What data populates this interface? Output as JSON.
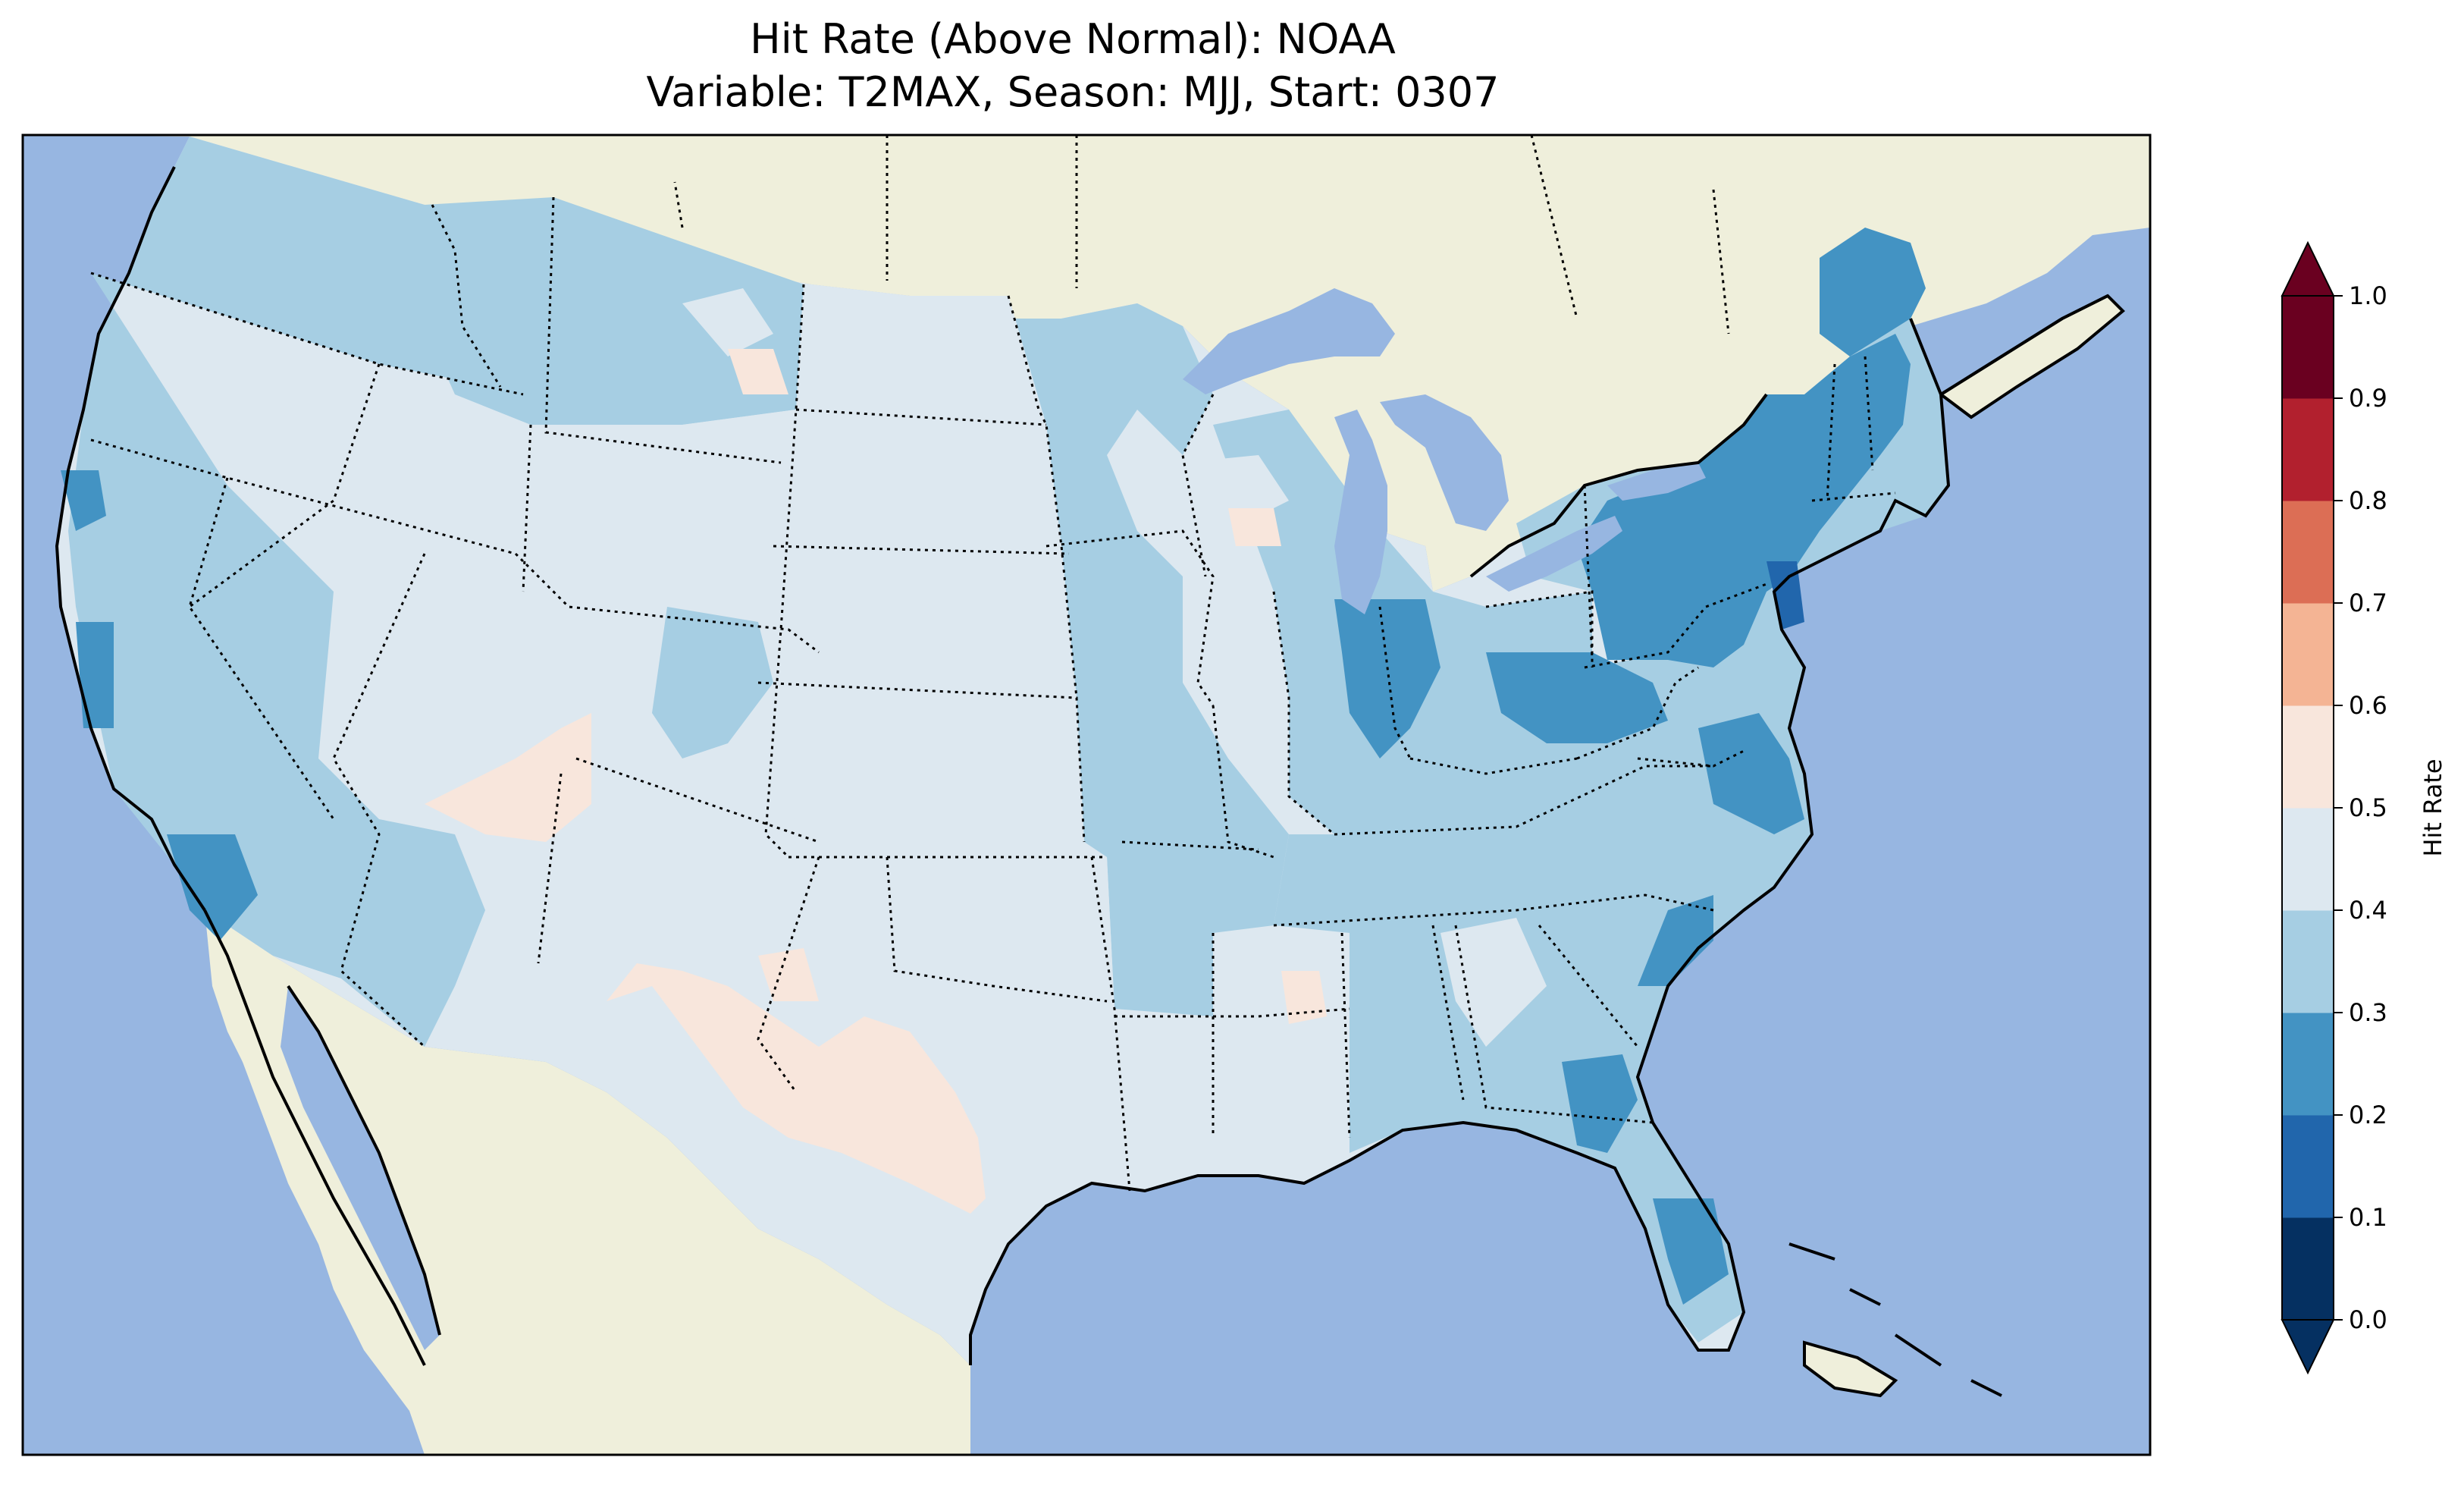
{
  "title": {
    "line1": "Hit Rate (Above Normal): NOAA",
    "line2": "Variable: T2MAX, Season: MJJ, Start: 0307"
  },
  "colorbar": {
    "label": "Hit Rate",
    "ticks": [
      "0.0",
      "0.1",
      "0.2",
      "0.3",
      "0.4",
      "0.5",
      "0.6",
      "0.7",
      "0.8",
      "0.9",
      "1.0"
    ],
    "bins": [
      {
        "from": 0.0,
        "to": 0.1,
        "color": "#053061"
      },
      {
        "from": 0.1,
        "to": 0.2,
        "color": "#2166ac"
      },
      {
        "from": 0.2,
        "to": 0.3,
        "color": "#4393c3"
      },
      {
        "from": 0.3,
        "to": 0.4,
        "color": "#a6cee3"
      },
      {
        "from": 0.4,
        "to": 0.5,
        "color": "#dde8f0"
      },
      {
        "from": 0.5,
        "to": 0.6,
        "color": "#f8e6dc"
      },
      {
        "from": 0.6,
        "to": 0.7,
        "color": "#f4b494"
      },
      {
        "from": 0.7,
        "to": 0.8,
        "color": "#dc6e55"
      },
      {
        "from": 0.8,
        "to": 0.9,
        "color": "#b2202e"
      },
      {
        "from": 0.9,
        "to": 1.0,
        "color": "#6a0020"
      }
    ],
    "extend": "both",
    "under_color": "#053061",
    "over_color": "#6a0020"
  },
  "map": {
    "ocean_color": "#97b6e1",
    "land_color": "#efefdb",
    "region": "Contiguous United States",
    "state_borders": "dotted",
    "coastlines": "solid"
  }
}
